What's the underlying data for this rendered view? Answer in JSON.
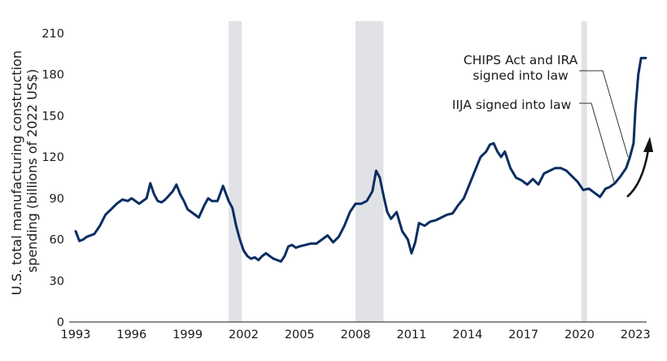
{
  "chart_data": {
    "type": "line",
    "ylabel_lines": [
      "U.S. total manufacturing construction",
      "spending (billions of 2022 US$)"
    ],
    "xlim": [
      1993,
      2023.6
    ],
    "ylim": [
      0,
      210
    ],
    "y_ticks": [
      0,
      30,
      60,
      90,
      120,
      150,
      180,
      210
    ],
    "x_ticks": [
      1993,
      1996,
      1999,
      2002,
      2005,
      2008,
      2011,
      2014,
      2017,
      2020,
      2023
    ],
    "grid": false,
    "line_color": "#0b2d62",
    "recession_color": "#e1e2e5",
    "recessions": [
      [
        2001.2,
        2001.9
      ],
      [
        2008.0,
        2009.5
      ],
      [
        2020.1,
        2020.4
      ]
    ],
    "annotations": [
      {
        "lines": [
          "CHIPS Act and IRA",
          "signed into law"
        ],
        "x": 2022.6,
        "y": 120
      },
      {
        "lines": [
          "IIJA signed into law"
        ],
        "x": 2021.9,
        "y": 100
      }
    ],
    "x": [
      1993.0,
      1993.2,
      1993.4,
      1993.6,
      1993.8,
      1994.0,
      1994.3,
      1994.6,
      1994.9,
      1995.2,
      1995.5,
      1995.8,
      1996.0,
      1996.2,
      1996.4,
      1996.6,
      1996.8,
      1997.0,
      1997.2,
      1997.4,
      1997.6,
      1997.8,
      1998.0,
      1998.2,
      1998.4,
      1998.6,
      1998.8,
      1999.0,
      1999.3,
      1999.6,
      1999.9,
      2000.1,
      2000.3,
      2000.6,
      2000.9,
      2001.2,
      2001.4,
      2001.6,
      2001.8,
      2002.0,
      2002.2,
      2002.4,
      2002.6,
      2002.8,
      2003.0,
      2003.2,
      2003.4,
      2003.6,
      2003.8,
      2004.0,
      2004.2,
      2004.4,
      2004.6,
      2004.8,
      2005.0,
      2005.3,
      2005.6,
      2005.9,
      2006.2,
      2006.5,
      2006.8,
      2007.1,
      2007.4,
      2007.7,
      2008.0,
      2008.3,
      2008.6,
      2008.9,
      2009.1,
      2009.3,
      2009.5,
      2009.7,
      2009.9,
      2010.2,
      2010.5,
      2010.8,
      2011.0,
      2011.2,
      2011.4,
      2011.7,
      2012.0,
      2012.3,
      2012.6,
      2012.9,
      2013.2,
      2013.5,
      2013.8,
      2014.1,
      2014.4,
      2014.7,
      2015.0,
      2015.2,
      2015.4,
      2015.6,
      2015.8,
      2016.0,
      2016.3,
      2016.6,
      2016.9,
      2017.2,
      2017.5,
      2017.8,
      2018.1,
      2018.4,
      2018.7,
      2019.0,
      2019.3,
      2019.6,
      2019.9,
      2020.2,
      2020.5,
      2020.8,
      2021.1,
      2021.4,
      2021.6,
      2021.9,
      2022.2,
      2022.5,
      2022.7,
      2022.9,
      2023.0,
      2023.15,
      2023.3,
      2023.45,
      2023.55
    ],
    "y": [
      66,
      59,
      60,
      62,
      63,
      64,
      70,
      78,
      82,
      86,
      89,
      88,
      90,
      88,
      86,
      88,
      90,
      101,
      93,
      88,
      87,
      89,
      92,
      95,
      100,
      93,
      88,
      82,
      79,
      76,
      85,
      90,
      88,
      88,
      99,
      88,
      83,
      70,
      60,
      52,
      48,
      46,
      47,
      45,
      48,
      50,
      48,
      46,
      45,
      44,
      48,
      55,
      56,
      54,
      55,
      56,
      57,
      57,
      60,
      63,
      58,
      62,
      70,
      80,
      86,
      86,
      88,
      95,
      110,
      105,
      92,
      80,
      75,
      80,
      66,
      60,
      50,
      58,
      72,
      70,
      73,
      74,
      76,
      78,
      79,
      85,
      90,
      100,
      110,
      120,
      124,
      129,
      130,
      124,
      120,
      124,
      112,
      105,
      103,
      100,
      104,
      100,
      108,
      110,
      112,
      112,
      110,
      106,
      102,
      96,
      97,
      94,
      91,
      97,
      98,
      101,
      106,
      112,
      120,
      130,
      155,
      180,
      192,
      192,
      192
    ]
  }
}
